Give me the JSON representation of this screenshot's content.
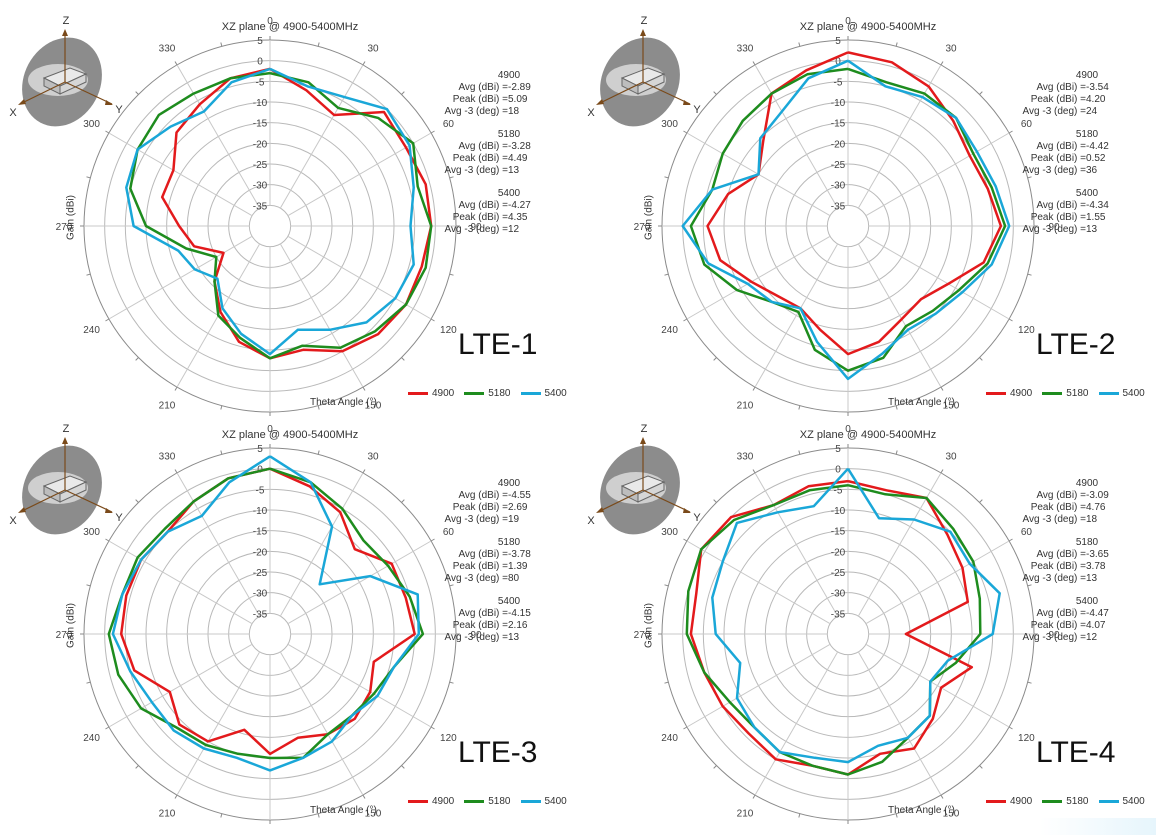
{
  "colors": {
    "4900": "#e31a1c",
    "5180": "#1e8c1e",
    "5400": "#1aa7d8"
  },
  "icon": "antenna-orientation-icon",
  "chart_data": [
    {
      "type": "polar-line",
      "label": "LTE-1",
      "title": "XZ plane @ 4900-5400MHz",
      "xlabel": "Theta Angle (°)",
      "ylabel": "Gain (dBi)",
      "rlim": [
        -40,
        5
      ],
      "radial_ticks": [
        "5",
        "0",
        "-5",
        "-10",
        "-15",
        "-20",
        "-25",
        "-30",
        "-35"
      ],
      "angle_ticks": [
        "0",
        "30",
        "60",
        "90",
        "120",
        "150",
        "180",
        "210",
        "240",
        "270",
        "300",
        "330"
      ],
      "axes_3d": [
        "Z",
        "X",
        "Y"
      ],
      "legend": [
        "4900",
        "5180",
        "5400"
      ],
      "stats": [
        {
          "freq": "4900",
          "avg_label": "Avg (dBi) =",
          "avg": "-2.89",
          "peak_label": "Peak (dBi) =",
          "peak": "5.09",
          "beam_label": "Avg -3 (deg) =",
          "beam": "18"
        },
        {
          "freq": "5180",
          "avg_label": "Avg (dBi) =",
          "avg": "-3.28",
          "peak_label": "Peak (dBi) =",
          "peak": "4.49",
          "beam_label": "Avg -3 (deg) =",
          "beam": "13"
        },
        {
          "freq": "5400",
          "avg_label": "Avg (dBi) =",
          "avg": "-4.27",
          "peak_label": "Peak (dBi) =",
          "peak": "4.35",
          "beam_label": "Avg -3 (deg) =",
          "beam": "12"
        }
      ],
      "theta": [
        0,
        15,
        30,
        45,
        60,
        75,
        90,
        105,
        120,
        135,
        150,
        165,
        180,
        195,
        210,
        225,
        240,
        255,
        270,
        285,
        300,
        315,
        330,
        345
      ],
      "series": [
        {
          "name": "4900",
          "values": [
            -2,
            -6,
            -9,
            -1,
            -2,
            -1,
            -1,
            -2,
            -2,
            -3,
            -5,
            -9,
            -8,
            -11,
            -16,
            -21,
            -27,
            -21,
            -18,
            -13,
            -13,
            -8,
            -6,
            -3
          ]
        },
        {
          "name": "5180",
          "values": [
            -3,
            -4,
            -7,
            -3,
            0,
            -3,
            -1,
            -1,
            -2,
            -4,
            -6,
            -10,
            -8,
            -12,
            -15,
            -21,
            -25,
            -19,
            -10,
            -5,
            -3,
            -2,
            -3,
            -3
          ]
        },
        {
          "name": "5400",
          "values": [
            -2,
            -5,
            -4,
            0,
            -1,
            -4,
            -6,
            -4,
            -5,
            -7,
            -11,
            -14,
            -9,
            -13,
            -17,
            -22,
            -19,
            -17,
            -7,
            -4,
            -3,
            -6,
            -8,
            -4
          ]
        }
      ]
    },
    {
      "type": "polar-line",
      "label": "LTE-2",
      "title": "XZ plane @ 4900-5400MHz",
      "xlabel": "Theta Angle (°)",
      "ylabel": "Gain (dBi)",
      "rlim": [
        -40,
        5
      ],
      "radial_ticks": [
        "5",
        "0",
        "-5",
        "-10",
        "-15",
        "-20",
        "-25",
        "-30",
        "-35"
      ],
      "angle_ticks": [
        "0",
        "30",
        "60",
        "90",
        "120",
        "150",
        "180",
        "210",
        "240",
        "270",
        "300",
        "330"
      ],
      "axes_3d": [
        "Z",
        "X",
        "Y"
      ],
      "legend": [
        "4900",
        "5180",
        "5400"
      ],
      "stats": [
        {
          "freq": "4900",
          "avg_label": "Avg (dBi) =",
          "avg": "-3.54",
          "peak_label": "Peak (dBi) =",
          "peak": "4.20",
          "beam_label": "Avg -3 (deg) =",
          "beam": "24"
        },
        {
          "freq": "5180",
          "avg_label": "Avg (dBi) =",
          "avg": "-4.42",
          "peak_label": "Peak (dBi) =",
          "peak": "0.52",
          "beam_label": "Avg -3 (deg) =",
          "beam": "36"
        },
        {
          "freq": "5400",
          "avg_label": "Avg (dBi) =",
          "avg": "-4.34",
          "peak_label": "Peak (dBi) =",
          "peak": "1.55",
          "beam_label": "Avg -3 (deg) =",
          "beam": "13"
        }
      ],
      "theta": [
        0,
        15,
        30,
        45,
        60,
        75,
        90,
        105,
        120,
        135,
        150,
        165,
        180,
        195,
        210,
        225,
        240,
        255,
        270,
        285,
        300,
        315,
        330,
        345
      ],
      "series": [
        {
          "name": "4900",
          "values": [
            2,
            1,
            -1,
            -4,
            -6,
            -5,
            -3,
            -6,
            -12,
            -15,
            -14,
            -11,
            -9,
            -14,
            -17,
            -16,
            -13,
            -8,
            -6,
            -10,
            -15,
            -11,
            -3,
            -1
          ]
        },
        {
          "name": "5180",
          "values": [
            -2,
            -4,
            -3,
            -3,
            -5,
            -4,
            -2,
            -5,
            -9,
            -11,
            -12,
            -7,
            -5,
            -9,
            -16,
            -14,
            -9,
            -4,
            -2,
            -6,
            -5,
            -4,
            -3,
            -2
          ]
        },
        {
          "name": "5400",
          "values": [
            0,
            -5,
            -4,
            -3,
            -4,
            -3,
            -1,
            -4,
            -8,
            -10,
            -11,
            -8,
            -3,
            -11,
            -17,
            -14,
            -12,
            -5,
            0,
            -6,
            -15,
            -10,
            -8,
            -3
          ]
        }
      ]
    },
    {
      "type": "polar-line",
      "label": "LTE-3",
      "title": "XZ plane @ 4900-5400MHz",
      "xlabel": "Theta Angle (°)",
      "ylabel": "Gain (dBi)",
      "rlim": [
        -40,
        5
      ],
      "radial_ticks": [
        "5",
        "0",
        "-5",
        "-10",
        "-15",
        "-20",
        "-25",
        "-30",
        "-35"
      ],
      "angle_ticks": [
        "0",
        "30",
        "60",
        "90",
        "120",
        "150",
        "180",
        "210",
        "240",
        "270",
        "300",
        "330"
      ],
      "axes_3d": [
        "Z",
        "X",
        "Y"
      ],
      "legend": [
        "4900",
        "5180",
        "5400"
      ],
      "stats": [
        {
          "freq": "4900",
          "avg_label": "Avg (dBi) =",
          "avg": "-4.55",
          "peak_label": "Peak (dBi) =",
          "peak": "2.69",
          "beam_label": "Avg -3 (deg) =",
          "beam": "19"
        },
        {
          "freq": "5180",
          "avg_label": "Avg (dBi) =",
          "avg": "-3.78",
          "peak_label": "Peak (dBi) =",
          "peak": "1.39",
          "beam_label": "Avg -3 (deg) =",
          "beam": "80"
        },
        {
          "freq": "5400",
          "avg_label": "Avg (dBi) =",
          "avg": "-4.15",
          "peak_label": "Peak (dBi) =",
          "peak": "2.16",
          "beam_label": "Avg -3 (deg) =",
          "beam": "13"
        }
      ],
      "theta": [
        0,
        15,
        30,
        45,
        60,
        75,
        90,
        105,
        120,
        135,
        150,
        165,
        180,
        195,
        210,
        225,
        240,
        255,
        270,
        285,
        300,
        315,
        330,
        345
      ],
      "series": [
        {
          "name": "4900",
          "values": [
            0,
            -3,
            -6,
            -11,
            -6,
            -6,
            -5,
            -14,
            -12,
            -11,
            -12,
            -14,
            -11,
            -16,
            -10,
            -9,
            -12,
            -6,
            -4,
            -4,
            -4,
            -5,
            -3,
            -1
          ]
        },
        {
          "name": "5180",
          "values": [
            0,
            -2,
            -5,
            -8,
            -7,
            -5,
            -3,
            -9,
            -11,
            -12,
            -12,
            -9,
            -10,
            -10,
            -9,
            -8,
            -4,
            -2,
            -1,
            -3,
            -3,
            -4,
            -3,
            -1
          ]
        },
        {
          "name": "5400",
          "values": [
            3,
            -2,
            -10,
            -23,
            -12,
            -3,
            -4,
            -9,
            -10,
            -12,
            -10,
            -9,
            -7,
            -9,
            -8,
            -7,
            -7,
            -5,
            -2,
            -3,
            -4,
            -5,
            -7,
            -2
          ]
        }
      ]
    },
    {
      "type": "polar-line",
      "label": "LTE-4",
      "title": "XZ plane @ 4900-5400MHz",
      "xlabel": "Theta Angle (°)",
      "ylabel": "Gain (dBi)",
      "rlim": [
        -40,
        5
      ],
      "radial_ticks": [
        "5",
        "0",
        "-5",
        "-10",
        "-15",
        "-20",
        "-25",
        "-30",
        "-35"
      ],
      "angle_ticks": [
        "0",
        "30",
        "60",
        "90",
        "120",
        "150",
        "180",
        "210",
        "240",
        "270",
        "300",
        "330"
      ],
      "axes_3d": [
        "Z",
        "X",
        "Y"
      ],
      "legend": [
        "4900",
        "5180",
        "5400"
      ],
      "stats": [
        {
          "freq": "4900",
          "avg_label": "Avg (dBi) =",
          "avg": "-3.09",
          "peak_label": "Peak (dBi) =",
          "peak": "4.76",
          "beam_label": "Avg -3 (deg) =",
          "beam": "18"
        },
        {
          "freq": "5180",
          "avg_label": "Avg (dBi) =",
          "avg": "-3.65",
          "peak_label": "Peak (dBi) =",
          "peak": "3.78",
          "beam_label": "Avg -3 (deg) =",
          "beam": "13"
        },
        {
          "freq": "5400",
          "avg_label": "Avg (dBi) =",
          "avg": "-4.47",
          "peak_label": "Peak (dBi) =",
          "peak": "4.07",
          "beam_label": "Avg -3 (deg) =",
          "beam": "12"
        }
      ],
      "theta": [
        0,
        15,
        30,
        45,
        60,
        75,
        90,
        105,
        120,
        135,
        150,
        165,
        180,
        195,
        210,
        225,
        240,
        255,
        270,
        285,
        300,
        315,
        330,
        345
      ],
      "series": [
        {
          "name": "4900",
          "values": [
            -3,
            -4,
            -2,
            -6,
            -8,
            -10,
            -26,
            -9,
            -14,
            -11,
            -8,
            -10,
            -6,
            -7,
            -5,
            -6,
            -5,
            -4,
            -2,
            -2,
            1,
            0,
            -4,
            -3
          ]
        },
        {
          "name": "5180",
          "values": [
            -4,
            -5,
            -2,
            -4,
            -5,
            -7,
            -8,
            -13,
            -17,
            -12,
            -11,
            -8,
            -6,
            -7,
            -7,
            -8,
            -7,
            -4,
            -1,
            0,
            1,
            -1,
            -4,
            -4
          ]
        },
        {
          "name": "5400",
          "values": [
            0,
            -11,
            -8,
            -5,
            -6,
            -2,
            -5,
            -15,
            -17,
            -12,
            -11,
            -12,
            -9,
            -9,
            -7,
            -8,
            -9,
            -13,
            -8,
            -6,
            -5,
            -2,
            -6,
            -8
          ]
        }
      ]
    }
  ]
}
